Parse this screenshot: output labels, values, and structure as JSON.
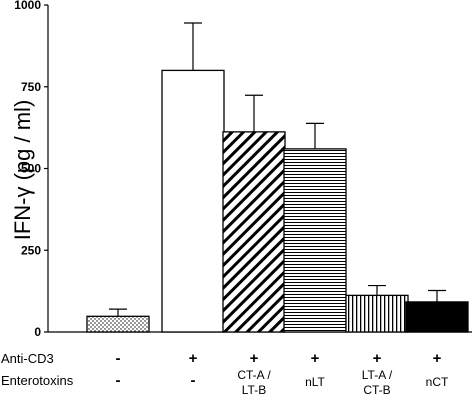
{
  "chart_data": {
    "type": "bar",
    "ylabel": "IFN-γ (pg / ml)",
    "ylim": [
      0,
      1000
    ],
    "yticks": [
      0,
      250,
      500,
      750,
      1000
    ],
    "xlabel": "",
    "grid": false,
    "legend": "none",
    "bars": [
      {
        "value": 48,
        "error": 22,
        "pattern": "dots"
      },
      {
        "value": 800,
        "error": 145,
        "pattern": "white"
      },
      {
        "value": 612,
        "error": 112,
        "pattern": "diagonal"
      },
      {
        "value": 560,
        "error": 78,
        "pattern": "horizontal"
      },
      {
        "value": 112,
        "error": 30,
        "pattern": "vertical"
      },
      {
        "value": 92,
        "error": 35,
        "pattern": "black"
      }
    ],
    "rows": [
      {
        "label": "Anti-CD3",
        "cells": [
          "-",
          "+",
          "+",
          "+",
          "+",
          "+"
        ]
      },
      {
        "label": "Enterotoxins",
        "cells": [
          "-",
          "-",
          "CT-A / LT-B",
          "nLT",
          "LT-A / CT-B",
          "nCT"
        ]
      }
    ]
  },
  "colors": {
    "bar_fill": "#ffffff",
    "bar_stroke": "#000000",
    "solid_fill": "#000000"
  }
}
